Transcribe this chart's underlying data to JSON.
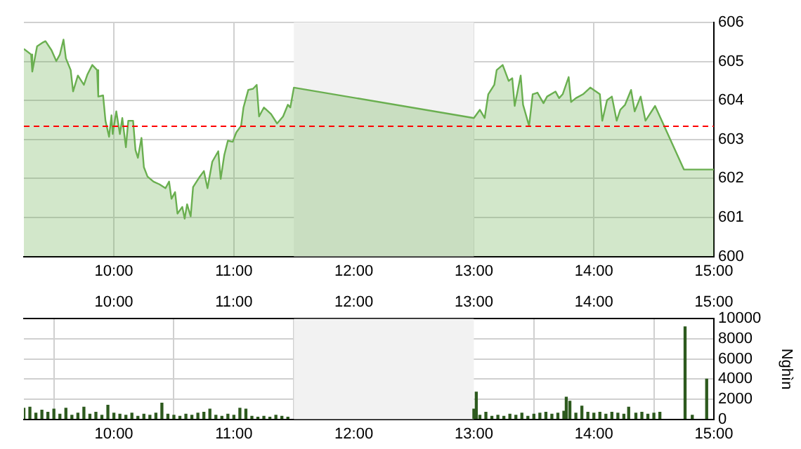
{
  "chart_data": [
    {
      "type": "area",
      "xlim": [
        9.25,
        15
      ],
      "xticks": [
        {
          "value": 10,
          "label": "10:00"
        },
        {
          "value": 11,
          "label": "11:00"
        },
        {
          "value": 12,
          "label": "12:00"
        },
        {
          "value": 13,
          "label": "13:00"
        },
        {
          "value": 14,
          "label": "14:00"
        },
        {
          "value": 15,
          "label": "15:00"
        }
      ],
      "ylim": [
        600,
        606
      ],
      "yticks": [
        600,
        601,
        602,
        603,
        604,
        605,
        606
      ],
      "grid": true,
      "marker": "none",
      "series": [
        {
          "color": "#6aaf50",
          "x": [
            9.25,
            9.31,
            9.32,
            9.36,
            9.41,
            9.43,
            9.48,
            9.52,
            9.55,
            9.58,
            9.6,
            9.64,
            9.66,
            9.7,
            9.75,
            9.78,
            9.82,
            9.86,
            9.87,
            9.91,
            9.93,
            9.96,
            9.98,
            9.99,
            10.02,
            10.05,
            10.07,
            10.1,
            10.12,
            10.16,
            10.18,
            10.2,
            10.23,
            10.25,
            10.28,
            10.33,
            10.38,
            10.43,
            10.46,
            10.48,
            10.51,
            10.53,
            10.57,
            10.59,
            10.61,
            10.64,
            10.66,
            10.71,
            10.75,
            10.78,
            10.82,
            10.87,
            10.89,
            10.92,
            10.95,
            10.99,
            11.02,
            11.06,
            11.08,
            11.12,
            11.16,
            11.19,
            11.21,
            11.25,
            11.31,
            11.36,
            11.41,
            11.45,
            11.47,
            11.5,
            13.0,
            13.05,
            13.09,
            13.12,
            13.17,
            13.19,
            13.24,
            13.29,
            13.32,
            13.34,
            13.39,
            13.41,
            13.46,
            13.49,
            13.53,
            13.58,
            13.61,
            13.68,
            13.71,
            13.74,
            13.79,
            13.81,
            13.85,
            13.91,
            13.97,
            14.05,
            14.07,
            14.11,
            14.15,
            14.19,
            14.22,
            14.26,
            14.31,
            14.34,
            14.39,
            14.43,
            14.51,
            14.75,
            15.0
          ],
          "values": [
            605.32,
            605.18,
            604.74,
            605.39,
            605.49,
            605.52,
            605.29,
            605.01,
            605.18,
            605.56,
            605.08,
            604.78,
            604.23,
            604.64,
            604.4,
            604.67,
            604.91,
            604.78,
            604.1,
            604.13,
            603.48,
            603.07,
            603.62,
            603.14,
            603.72,
            603.14,
            603.55,
            602.8,
            603.48,
            603.48,
            602.73,
            602.53,
            603.04,
            602.29,
            602.05,
            601.92,
            601.85,
            601.75,
            601.92,
            601.48,
            601.65,
            601.1,
            601.27,
            600.97,
            601.34,
            601.03,
            601.78,
            602.02,
            602.19,
            601.75,
            602.43,
            602.7,
            601.99,
            602.6,
            602.97,
            602.94,
            603.18,
            603.35,
            603.82,
            604.27,
            604.3,
            604.4,
            603.59,
            603.82,
            603.65,
            603.41,
            603.59,
            603.89,
            603.82,
            604.33,
            603.55,
            603.76,
            603.55,
            604.16,
            604.4,
            604.78,
            604.91,
            604.5,
            604.57,
            603.86,
            604.64,
            603.89,
            603.35,
            604.16,
            604.2,
            603.93,
            604.1,
            604.23,
            604.06,
            604.16,
            604.6,
            603.96,
            604.06,
            604.16,
            604.33,
            604.16,
            603.48,
            604.01,
            604.1,
            603.48,
            603.76,
            603.89,
            604.27,
            603.72,
            604.1,
            603.48,
            603.86,
            602.23,
            602.23
          ]
        }
      ],
      "ref_lines": [
        {
          "axis": "y",
          "value": 603.34,
          "color": "#ff0000",
          "line_style": "dashed"
        }
      ],
      "bands": [
        {
          "axis": "x",
          "from": 11.5,
          "to": 13,
          "color": "#f2f2f2"
        }
      ]
    },
    {
      "type": "bar",
      "ylabel": "Nghìn",
      "xlim": [
        9.25,
        15
      ],
      "xticks": [
        {
          "value": 10,
          "label": "10:00"
        },
        {
          "value": 11,
          "label": "11:00"
        },
        {
          "value": 12,
          "label": "12:00"
        },
        {
          "value": 13,
          "label": "13:00"
        },
        {
          "value": 14,
          "label": "14:00"
        },
        {
          "value": 15,
          "label": "15:00"
        }
      ],
      "x2lim": [
        9.25,
        15
      ],
      "x2ticks": [
        {
          "value": 10,
          "label": "10:00"
        },
        {
          "value": 11,
          "label": "11:00"
        },
        {
          "value": 12,
          "label": "12:00"
        },
        {
          "value": 13,
          "label": "13:00"
        },
        {
          "value": 14,
          "label": "14:00"
        },
        {
          "value": 15,
          "label": "15:00"
        }
      ],
      "ylim": [
        0,
        10000
      ],
      "yticks": [
        0,
        2000,
        4000,
        6000,
        8000,
        10000
      ],
      "grid": true,
      "series": [
        {
          "color": "#2d5a1e",
          "x": [
            9.25,
            9.3,
            9.35,
            9.4,
            9.45,
            9.5,
            9.55,
            9.6,
            9.65,
            9.7,
            9.75,
            9.8,
            9.85,
            9.9,
            9.95,
            10.0,
            10.05,
            10.1,
            10.15,
            10.2,
            10.25,
            10.3,
            10.35,
            10.4,
            10.45,
            10.5,
            10.55,
            10.6,
            10.65,
            10.7,
            10.75,
            10.8,
            10.85,
            10.9,
            10.95,
            11.0,
            11.05,
            11.1,
            11.15,
            11.2,
            11.25,
            11.3,
            11.35,
            11.4,
            11.45,
            13.0,
            13.02,
            13.05,
            13.1,
            13.15,
            13.2,
            13.25,
            13.3,
            13.35,
            13.4,
            13.45,
            13.5,
            13.55,
            13.6,
            13.65,
            13.7,
            13.75,
            13.77,
            13.8,
            13.85,
            13.9,
            13.95,
            14.0,
            14.05,
            14.1,
            14.15,
            14.2,
            14.25,
            14.29,
            14.35,
            14.4,
            14.45,
            14.5,
            14.55,
            14.76,
            14.82,
            14.94
          ],
          "values": [
            1100,
            1200,
            600,
            900,
            700,
            1000,
            500,
            1100,
            400,
            600,
            1200,
            500,
            700,
            400,
            1400,
            600,
            500,
            400,
            600,
            300,
            500,
            400,
            600,
            1600,
            500,
            400,
            300,
            500,
            400,
            600,
            700,
            1000,
            400,
            300,
            500,
            400,
            1100,
            1000,
            300,
            200,
            300,
            200,
            400,
            300,
            200,
            1000,
            2700,
            400,
            700,
            300,
            400,
            300,
            500,
            400,
            600,
            300,
            500,
            600,
            700,
            500,
            600,
            800,
            2200,
            1800,
            600,
            1300,
            700,
            600,
            700,
            500,
            700,
            600,
            500,
            1200,
            600,
            700,
            500,
            600,
            700,
            9200,
            400,
            4000
          ]
        }
      ],
      "bands": [
        {
          "axis": "x",
          "from": 11.5,
          "to": 13,
          "color": "#f2f2f2"
        }
      ]
    }
  ]
}
